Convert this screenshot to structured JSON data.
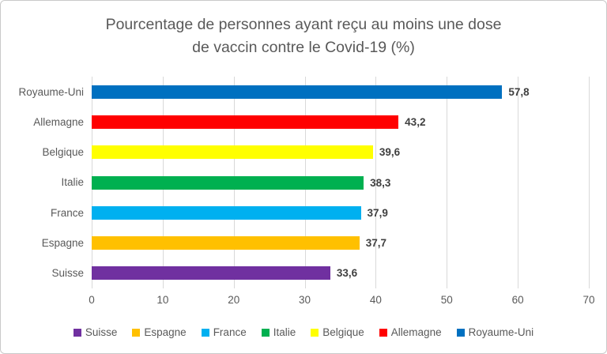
{
  "chart_data": {
    "type": "bar",
    "orientation": "horizontal",
    "title": "Pourcentage de personnes ayant reçu au moins une dose de vaccin contre le Covid-19 (%)",
    "title_lines": [
      "Pourcentage de personnes ayant reçu au moins une dose",
      "de vaccin contre le Covid-19 (%)"
    ],
    "categories": [
      "Royaume-Uni",
      "Allemagne",
      "Belgique",
      "Italie",
      "France",
      "Espagne",
      "Suisse"
    ],
    "values": [
      57.8,
      43.2,
      39.6,
      38.3,
      37.9,
      37.7,
      33.6
    ],
    "value_labels": [
      "57,8",
      "43,2",
      "39,6",
      "38,3",
      "37,9",
      "37,7",
      "33,6"
    ],
    "bar_colors": [
      "#0070C0",
      "#FF0000",
      "#FFFF00",
      "#00B050",
      "#00B0F0",
      "#FFC000",
      "#7030A0"
    ],
    "xlim": [
      0,
      70
    ],
    "x_ticks": [
      "0",
      "10",
      "20",
      "30",
      "40",
      "50",
      "60",
      "70"
    ],
    "grid": true,
    "legend": {
      "position": "bottom",
      "items": [
        {
          "label": "Suisse",
          "color": "#7030A0"
        },
        {
          "label": "Espagne",
          "color": "#FFC000"
        },
        {
          "label": "France",
          "color": "#00B0F0"
        },
        {
          "label": "Italie",
          "color": "#00B050"
        },
        {
          "label": "Belgique",
          "color": "#FFFF00"
        },
        {
          "label": "Allemagne",
          "color": "#FF0000"
        },
        {
          "label": "Royaume-Uni",
          "color": "#0070C0"
        }
      ]
    },
    "style": {
      "gridline_color": "#D9D9D9",
      "text_color": "#595959",
      "value_label_color": "#404040"
    }
  }
}
